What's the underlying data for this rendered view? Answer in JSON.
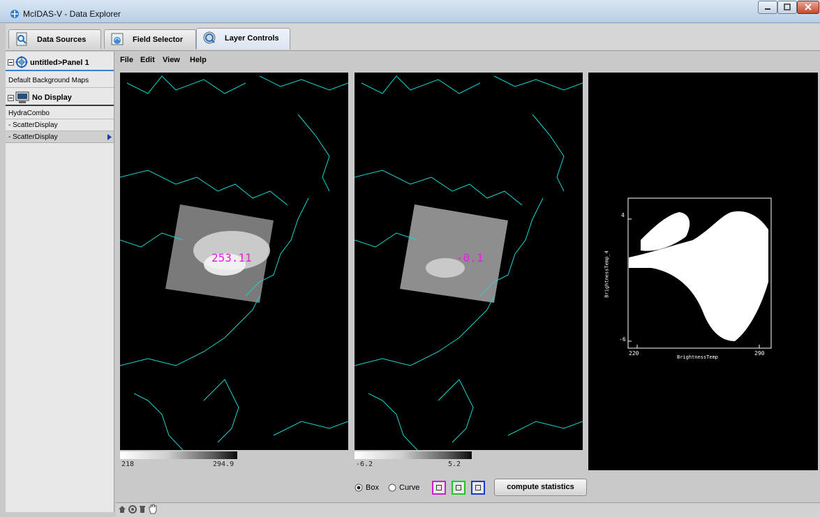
{
  "window": {
    "title": "McIDAS-V - Data Explorer"
  },
  "tabs": [
    {
      "label": "Data Sources",
      "icon": "data-sources-icon"
    },
    {
      "label": "Field Selector",
      "icon": "field-selector-icon"
    },
    {
      "label": "Layer Controls",
      "icon": "layer-controls-icon",
      "active": true
    }
  ],
  "layers": {
    "panel": "untitled>Panel 1",
    "background_maps": "Default Background Maps",
    "no_display": "No Display",
    "items": [
      "HydraCombo",
      "- ScatterDisplay",
      "- ScatterDisplay"
    ]
  },
  "menu": [
    "File",
    "Edit",
    "View",
    "Help"
  ],
  "display1": {
    "readout": "253.11",
    "colorbar_min": "218",
    "colorbar_max": "294.9"
  },
  "display2": {
    "readout": "-0.1",
    "colorbar_min": "-6.2",
    "colorbar_max": "5.2"
  },
  "scatter": {
    "xlabel": "BrightnessTemp",
    "ylabel": "BrightnessTemp_4",
    "x_ticks": [
      "220",
      "290"
    ],
    "y_ticks": [
      "4",
      "-6"
    ]
  },
  "controls": {
    "box_label": "Box",
    "curve_label": "Curve",
    "selected_mode": "Box",
    "selector_colors": [
      "#d21ad2",
      "#1ec81e",
      "#1a3ad2"
    ],
    "compute_label": "compute statistics"
  },
  "colors": {
    "map_lines": "#17d6d6",
    "readout": "#e020e0"
  }
}
